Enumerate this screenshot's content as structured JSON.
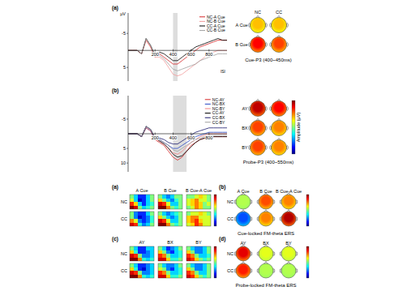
{
  "chart_data": [
    {
      "type": "line",
      "panel": "(a)",
      "y_label": "μV",
      "x": [
        -100,
        -50,
        0,
        50,
        100,
        150,
        200,
        250,
        300,
        350,
        400,
        450,
        500,
        550,
        600,
        650,
        700,
        750,
        800,
        850,
        900,
        950,
        1000
      ],
      "xlim": [
        -100,
        1000
      ],
      "ylim": [
        9,
        -11
      ],
      "xticks": [
        200,
        400,
        600,
        800
      ],
      "yticks": [
        -5,
        5
      ],
      "legend": "upper right",
      "shaded_window": [
        400,
        450
      ],
      "annotation": "ISI",
      "series": [
        {
          "name": "NC-A Cue",
          "color": "#d62728",
          "values": [
            0,
            0,
            0,
            1,
            -3,
            -1,
            2,
            1,
            2,
            3,
            4,
            4,
            3,
            2,
            1,
            0,
            -1,
            -1.5,
            -2,
            -2.5,
            -3,
            -3,
            -3
          ]
        },
        {
          "name": "NC-B Cue",
          "color": "#f29a9a",
          "values": [
            0,
            0,
            0,
            1,
            -3,
            -1,
            2,
            2,
            3,
            5,
            7,
            7.5,
            7,
            6,
            5,
            4,
            3,
            2,
            1,
            0.5,
            0,
            0,
            0
          ]
        },
        {
          "name": "CC-A Cue",
          "color": "#000000",
          "values": [
            0,
            0,
            0,
            1,
            -3.5,
            -1.5,
            1.5,
            0.5,
            1,
            2,
            3,
            3,
            2,
            1,
            0,
            -1,
            -1.5,
            -2,
            -2.5,
            -3,
            -3.5,
            -3,
            -3
          ]
        },
        {
          "name": "CC-B Cue",
          "color": "#9e9e9e",
          "values": [
            0,
            0,
            0,
            1,
            -3.5,
            -1.5,
            1.5,
            1.5,
            2.5,
            4,
            5.5,
            6,
            5.5,
            5,
            4.5,
            4,
            3,
            2.5,
            2,
            1.5,
            1,
            1,
            1
          ]
        }
      ]
    },
    {
      "type": "topomap",
      "title": "Cue-P3 (400~450ms)",
      "columns": [
        "NC",
        "CC"
      ],
      "rows": [
        "A Cue",
        "B Cue"
      ],
      "values": [
        [
          5.5,
          5.5
        ],
        [
          7,
          6.5
        ]
      ],
      "colorbar_range": [
        0,
        8
      ]
    },
    {
      "type": "line",
      "panel": "(b)",
      "x": [
        -100,
        -50,
        0,
        50,
        100,
        150,
        200,
        250,
        300,
        350,
        400,
        450,
        500,
        550,
        600,
        650,
        700,
        750,
        800,
        850,
        900,
        950,
        1000
      ],
      "xlim": [
        -100,
        1000
      ],
      "ylim": [
        13,
        -13
      ],
      "xticks": [
        200,
        400,
        600,
        800
      ],
      "yticks": [
        -5,
        5,
        10
      ],
      "legend": "upper right",
      "shaded_window": [
        400,
        550
      ],
      "series": [
        {
          "name": "NC-AY",
          "color": "#d62728",
          "values": [
            0,
            0,
            0,
            1,
            -2,
            -1,
            2,
            3,
            4,
            6,
            8,
            9,
            8,
            6,
            4,
            3,
            2,
            1.5,
            1,
            1,
            1,
            1,
            1
          ]
        },
        {
          "name": "NC-BX",
          "color": "#2a47c4",
          "values": [
            0,
            0,
            0,
            1,
            -2,
            -1,
            2,
            2,
            3,
            4,
            5,
            5,
            4,
            3,
            2,
            1,
            0.5,
            0,
            -0.5,
            -0.5,
            -0.5,
            -0.5,
            -0.5
          ]
        },
        {
          "name": "NC-BY",
          "color": "#f08080",
          "values": [
            0,
            0,
            0,
            1,
            -2,
            -1,
            2,
            2.5,
            3.5,
            5,
            6.5,
            7,
            6,
            4.5,
            3,
            2,
            1,
            0.5,
            0,
            0,
            0,
            0,
            0
          ]
        },
        {
          "name": "CC-AY",
          "color": "#000000",
          "values": [
            0,
            0,
            0,
            1,
            -2.5,
            -1.5,
            1.5,
            2.5,
            3.5,
            5,
            7,
            8,
            7.5,
            6,
            4.5,
            3,
            2,
            1.5,
            1,
            1,
            1,
            1,
            1
          ]
        },
        {
          "name": "CC-BX",
          "color": "#1a1a6e",
          "values": [
            0,
            0,
            0,
            1,
            -2.5,
            -1.5,
            1.5,
            1.5,
            2,
            3,
            3.5,
            3.5,
            2.5,
            1.5,
            0.5,
            -0.5,
            -1,
            -1.5,
            -2,
            -2,
            -2,
            -2,
            -2
          ]
        },
        {
          "name": "CC-BY",
          "color": "#9e9e9e",
          "values": [
            0,
            0,
            0,
            1,
            -2.5,
            -1.5,
            1.5,
            2,
            3,
            4,
            5.5,
            6,
            5,
            4,
            3,
            2,
            1.5,
            1,
            0.5,
            0.5,
            0.5,
            0.5,
            0.5
          ]
        }
      ]
    },
    {
      "type": "topomap",
      "title": "Probe-P3 (400~550ms)",
      "rows": [
        "AY",
        "BX",
        "BY"
      ],
      "values": [
        [
          7.5,
          7
        ],
        [
          6.5,
          6
        ],
        [
          6.5,
          6
        ]
      ],
      "colorbar_range": [
        0,
        8
      ],
      "colorbar_label": "Amplitude (μV)"
    },
    {
      "type": "heatmap",
      "panel": "(a)",
      "columns": [
        "A Cue",
        "B Cue",
        "B Cue-A Cue"
      ],
      "rows": [
        "NC",
        "CC"
      ],
      "colorbar_range": [
        -3,
        3
      ],
      "tick_labels": false,
      "cells": [
        [
          [
            [
              0,
              -1,
              -2,
              -2,
              -1,
              0
            ],
            [
              0.5,
              -1,
              -2.5,
              -2,
              -1,
              0
            ],
            [
              2,
              1,
              -1,
              -2,
              -1,
              -0.5
            ],
            [
              3,
              2.5,
              0,
              -1,
              -0.5,
              0
            ]
          ],
          [
            [
              0,
              -1,
              -1.5,
              -1,
              0,
              0
            ],
            [
              1,
              0,
              -1,
              -1.5,
              -0.5,
              0
            ],
            [
              2.5,
              2,
              0.5,
              -1,
              -1,
              0
            ],
            [
              3,
              3,
              1.5,
              0,
              -0.5,
              0
            ]
          ],
          [
            [
              0,
              0,
              0.5,
              1,
              0.5,
              0
            ],
            [
              0.5,
              1,
              1.5,
              0.5,
              0.5,
              0
            ],
            [
              0.5,
              1,
              1.5,
              1,
              0,
              0.5
            ],
            [
              0,
              0.5,
              1.5,
              1,
              0,
              0
            ]
          ]
        ],
        [
          [
            [
              0,
              -1.5,
              -2,
              -2,
              -1,
              0
            ],
            [
              0,
              -1.5,
              -2.5,
              -2,
              -1.5,
              -0.5
            ],
            [
              1.5,
              0.5,
              -1.5,
              -2,
              -1.5,
              -0.5
            ],
            [
              2.5,
              2,
              -0.5,
              -1.5,
              -1,
              0
            ]
          ],
          [
            [
              0,
              -1,
              -1.5,
              -1,
              -0.5,
              0
            ],
            [
              1,
              0,
              -1,
              -1.5,
              -1,
              0
            ],
            [
              2.5,
              2,
              0.5,
              -1,
              -1,
              0
            ],
            [
              3,
              3,
              1.5,
              0,
              -0.5,
              0
            ]
          ],
          [
            [
              0,
              0.5,
              0.5,
              1,
              0.5,
              0
            ],
            [
              1,
              1.5,
              1.5,
              0.5,
              0.5,
              0.5
            ],
            [
              1,
              1.5,
              2,
              1,
              0.5,
              0.5
            ],
            [
              0.5,
              1,
              2,
              1.5,
              0.5,
              0.5
            ]
          ]
        ]
      ]
    },
    {
      "type": "topomap",
      "panel": "(b)",
      "title": "Cue-locked FM-theta ERS",
      "columns": [
        "A Cue",
        "B Cue",
        "B Cue-A Cue"
      ],
      "rows": [
        "NC",
        "CC"
      ],
      "values": [
        [
          0.1,
          0.6,
          0.5
        ],
        [
          -0.6,
          0.5,
          0.9
        ]
      ],
      "colorbar_range": [
        -1,
        1
      ]
    },
    {
      "type": "heatmap",
      "panel": "(c)",
      "columns": [
        "AY",
        "BX",
        "BY"
      ],
      "rows": [
        "NC",
        "CC"
      ],
      "colorbar_range": [
        -3,
        3
      ],
      "tick_labels": false,
      "cells": [
        [
          [
            [
              0,
              -1,
              -2,
              -2,
              -1,
              -1
            ],
            [
              1,
              -0.5,
              -2,
              -2,
              -1.5,
              -1
            ],
            [
              2.5,
              2,
              0,
              -1.5,
              -1.5,
              -1
            ],
            [
              3,
              3,
              1.5,
              -0.5,
              -1,
              -0.5
            ]
          ],
          [
            [
              0,
              -1,
              -2,
              -1.5,
              -1,
              0
            ],
            [
              1,
              0,
              -1.5,
              -2,
              -1,
              -0.5
            ],
            [
              2,
              1.5,
              0,
              -1,
              -1,
              -0.5
            ],
            [
              2.5,
              2.5,
              1,
              -0.5,
              -0.5,
              0
            ]
          ],
          [
            [
              0,
              -1,
              -1.5,
              -1.5,
              -1,
              0
            ],
            [
              1,
              0,
              -1.5,
              -1.5,
              -1,
              0
            ],
            [
              2,
              1.5,
              0,
              -1,
              -1,
              -0.5
            ],
            [
              2.5,
              2,
              1,
              0,
              -0.5,
              0
            ]
          ]
        ],
        [
          [
            [
              0,
              -1,
              -2,
              -2,
              -1.5,
              -1
            ],
            [
              1,
              -0.5,
              -2,
              -2.5,
              -1.5,
              -1
            ],
            [
              2.5,
              2,
              0,
              -1.5,
              -1.5,
              -1
            ],
            [
              3,
              3,
              1.5,
              -0.5,
              -1,
              -0.5
            ]
          ],
          [
            [
              0,
              -1,
              -1.5,
              -1.5,
              -1,
              0
            ],
            [
              0.5,
              0,
              -1.5,
              -2,
              -1,
              -0.5
            ],
            [
              2,
              1.5,
              0,
              -1,
              -1,
              -0.5
            ],
            [
              2.5,
              2.5,
              1,
              -0.5,
              -0.5,
              0
            ]
          ],
          [
            [
              0,
              -1,
              -1.5,
              -1.5,
              -1,
              0
            ],
            [
              1,
              0,
              -1.5,
              -1.5,
              -1,
              0
            ],
            [
              2,
              1.5,
              0,
              -1,
              -1,
              0
            ],
            [
              2.5,
              2,
              1,
              0,
              -0.5,
              0
            ]
          ]
        ]
      ]
    },
    {
      "type": "topomap",
      "panel": "(d)",
      "title": "Probe-locked FM-theta ERS",
      "columns": [
        "AY",
        "BX",
        "BY"
      ],
      "rows": [
        "NC",
        "CC"
      ],
      "values": [
        [
          0.8,
          0.2,
          0.2
        ],
        [
          0.7,
          0.1,
          0.1
        ]
      ],
      "colorbar_range": [
        -1,
        1
      ]
    }
  ]
}
